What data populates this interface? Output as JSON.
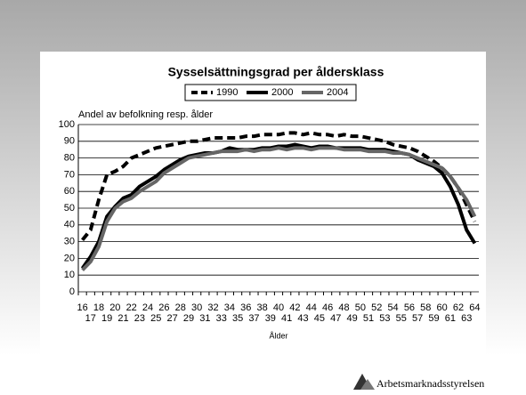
{
  "chart_data": {
    "type": "line",
    "title": "Sysselsättningsgrad per åldersklass",
    "y_label": "Andel av befolkning resp. ålder",
    "x_label": "Ålder",
    "categories": [
      "16",
      "17",
      "18",
      "19",
      "20",
      "21",
      "22",
      "23",
      "24",
      "25",
      "26",
      "27",
      "28",
      "29",
      "30",
      "31",
      "32",
      "33",
      "34",
      "35",
      "36",
      "37",
      "38",
      "39",
      "40",
      "41",
      "42",
      "43",
      "44",
      "45",
      "46",
      "47",
      "48",
      "49",
      "50",
      "51",
      "52",
      "53",
      "54",
      "55",
      "56",
      "57",
      "58",
      "59",
      "60",
      "61",
      "62",
      "63",
      "64"
    ],
    "series": [
      {
        "name": "1990",
        "color": "#000000",
        "style": "dashed",
        "values": [
          31,
          37,
          55,
          70,
          72,
          75,
          80,
          82,
          84,
          86,
          87,
          88,
          89,
          90,
          90,
          91,
          92,
          92,
          92,
          92,
          93,
          93,
          94,
          94,
          94,
          95,
          95,
          94,
          95,
          94,
          94,
          93,
          94,
          93,
          93,
          92,
          91,
          90,
          88,
          87,
          86,
          84,
          81,
          78,
          74,
          69,
          62,
          52,
          42
        ]
      },
      {
        "name": "2000",
        "color": "#000000",
        "style": "solid",
        "values": [
          14,
          21,
          30,
          45,
          51,
          56,
          58,
          63,
          66,
          69,
          73,
          76,
          79,
          81,
          82,
          83,
          83,
          84,
          86,
          85,
          85,
          85,
          86,
          86,
          87,
          87,
          88,
          87,
          86,
          87,
          87,
          86,
          86,
          86,
          86,
          85,
          85,
          85,
          84,
          83,
          82,
          79,
          77,
          75,
          71,
          63,
          52,
          37,
          29
        ]
      },
      {
        "name": "2004",
        "color": "#666666",
        "style": "solid",
        "values": [
          13,
          18,
          27,
          42,
          50,
          54,
          56,
          60,
          63,
          66,
          71,
          74,
          77,
          80,
          81,
          82,
          83,
          84,
          84,
          84,
          85,
          84,
          85,
          85,
          86,
          85,
          86,
          86,
          85,
          86,
          86,
          86,
          85,
          85,
          85,
          84,
          84,
          84,
          83,
          83,
          82,
          80,
          78,
          76,
          74,
          69,
          62,
          55,
          45
        ]
      }
    ],
    "ylim": [
      0,
      100
    ],
    "yticks": [
      0,
      10,
      20,
      30,
      40,
      50,
      60,
      70,
      80,
      90,
      100
    ],
    "grid": true
  },
  "footer": {
    "logo": "Arbetsmarknadsstyrelsen"
  }
}
